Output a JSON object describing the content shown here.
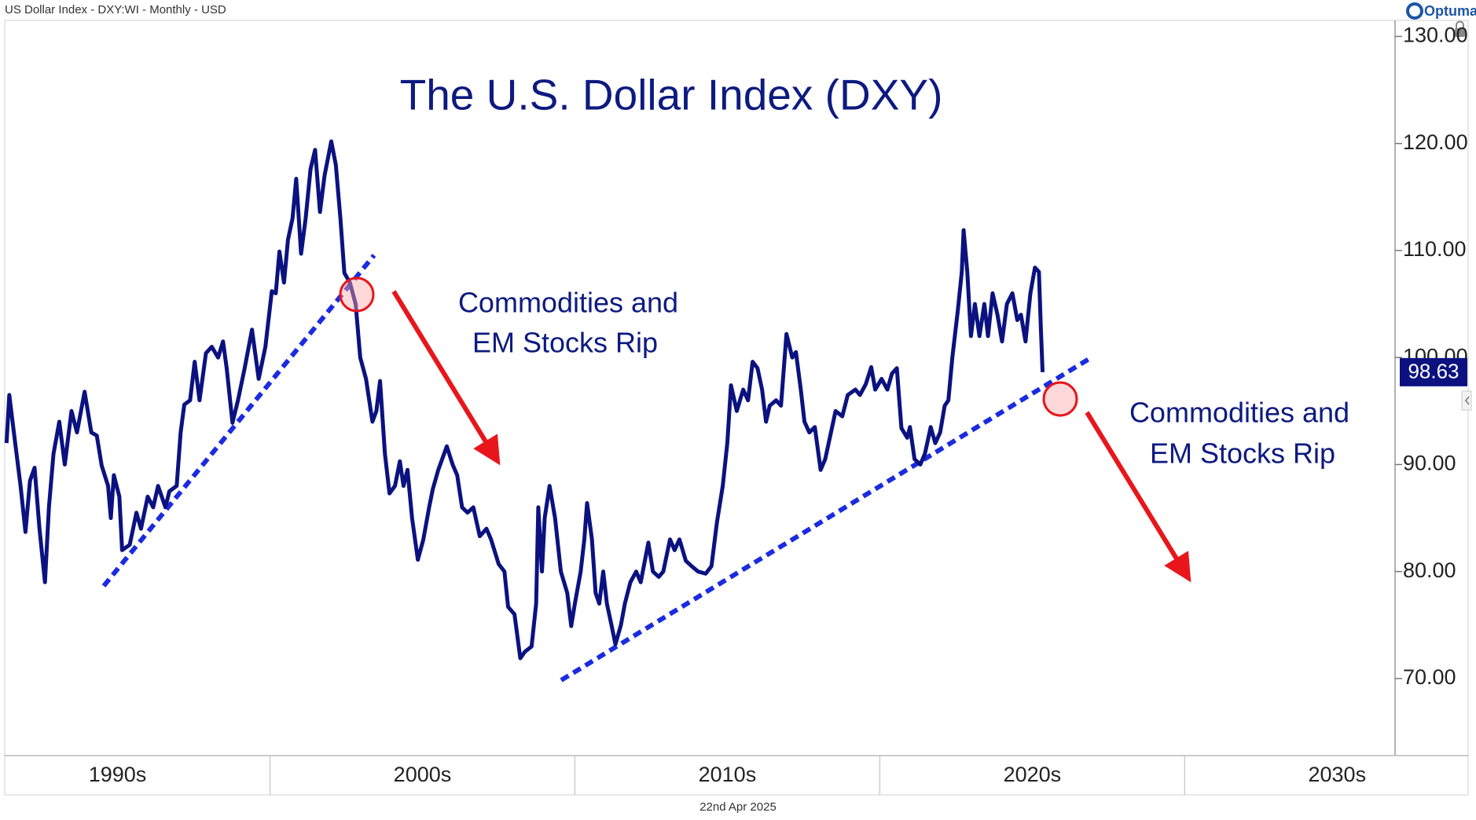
{
  "header": "US Dollar Index - DXY:WI - Monthly - USD",
  "brand": "Optuma",
  "footer": "22nd Apr 2025",
  "chart_data": {
    "type": "line",
    "title": "The U.S. Dollar Index (DXY)",
    "annotations": [
      [
        "Commodities and",
        "EM Stocks Rip"
      ],
      [
        "Commodities and",
        "EM Stocks Rip"
      ]
    ],
    "color": "#0b1280",
    "x": [
      1991.36,
      1991.45,
      1991.6,
      1991.82,
      1991.98,
      1992.13,
      1992.28,
      1992.44,
      1992.62,
      1992.75,
      1992.9,
      1993.09,
      1993.27,
      1993.49,
      1993.67,
      1993.92,
      1994.14,
      1994.32,
      1994.48,
      1994.69,
      1994.78,
      1994.88,
      1995.06,
      1995.15,
      1995.4,
      1995.62,
      1995.77,
      1995.99,
      1996.17,
      1996.33,
      1996.57,
      1996.7,
      1996.94,
      1997.07,
      1997.19,
      1997.38,
      1997.53,
      1997.69,
      1997.9,
      1998.09,
      1998.3,
      1998.46,
      1998.58,
      1998.77,
      1998.95,
      1999.17,
      1999.41,
      1999.63,
      1999.85,
      2000.06,
      2000.19,
      2000.31,
      2000.46,
      2000.59,
      2000.74,
      2000.86,
      2001.02,
      2001.17,
      2001.33,
      2001.48,
      2001.64,
      2001.79,
      2002.01,
      2002.16,
      2002.31,
      2002.44,
      2002.62,
      2002.81,
      2002.96,
      2003.15,
      2003.36,
      2003.49,
      2003.61,
      2003.77,
      2003.92,
      2004.1,
      2004.26,
      2004.38,
      2004.51,
      2004.66,
      2004.85,
      2005.03,
      2005.22,
      2005.34,
      2005.52,
      2005.8,
      2005.99,
      2006.14,
      2006.3,
      2006.48,
      2006.67,
      2006.88,
      2007.1,
      2007.25,
      2007.5,
      2007.69,
      2007.81,
      2008.02,
      2008.21,
      2008.36,
      2008.58,
      2008.73,
      2008.8,
      2008.92,
      2009.01,
      2009.17,
      2009.35,
      2009.54,
      2009.75,
      2009.88,
      2010.0,
      2010.19,
      2010.31,
      2010.4,
      2010.56,
      2010.68,
      2010.8,
      2010.93,
      2011.05,
      2011.2,
      2011.33,
      2011.51,
      2011.64,
      2011.82,
      2012.01,
      2012.16,
      2012.41,
      2012.56,
      2012.75,
      2012.9,
      2013.12,
      2013.27,
      2013.43,
      2013.64,
      2013.83,
      2014.04,
      2014.29,
      2014.48,
      2014.66,
      2014.85,
      2015.0,
      2015.12,
      2015.31,
      2015.52,
      2015.68,
      2015.83,
      2015.99,
      2016.14,
      2016.27,
      2016.39,
      2016.6,
      2016.76,
      2016.94,
      2017.13,
      2017.25,
      2017.41,
      2017.53,
      2017.69,
      2017.87,
      2018.06,
      2018.21,
      2018.4,
      2018.55,
      2018.77,
      2018.95,
      2019.2,
      2019.35,
      2019.54,
      2019.72,
      2019.85,
      2020.06,
      2020.25,
      2020.4,
      2020.56,
      2020.71,
      2020.9,
      2020.99,
      2021.14,
      2021.33,
      2021.48,
      2021.67,
      2021.82,
      2021.98,
      2022.13,
      2022.25,
      2022.38,
      2022.56,
      2022.69,
      2022.75,
      2022.87,
      2022.99,
      2023.12,
      2023.27,
      2023.43,
      2023.55,
      2023.7,
      2023.86,
      2024.01,
      2024.17,
      2024.35,
      2024.51,
      2024.63,
      2024.78,
      2024.94,
      2025.09,
      2025.22,
      2025.28,
      2025.34
    ],
    "values": [
      92,
      96.5,
      93,
      88,
      83.7,
      88.5,
      89.7,
      84,
      79,
      86,
      91,
      94,
      90,
      95,
      93,
      96.8,
      93,
      92.7,
      89.9,
      88,
      85,
      89,
      87,
      82,
      82.5,
      85.5,
      84,
      87,
      86,
      88,
      86,
      87.5,
      88,
      93,
      95.6,
      96,
      99.6,
      96,
      100.4,
      101,
      100,
      101.5,
      99,
      93.9,
      96,
      99,
      102.6,
      98,
      101,
      106.2,
      106,
      109.9,
      107,
      111,
      113,
      116.7,
      109.7,
      113,
      117.6,
      119.4,
      113.6,
      117,
      120.2,
      118,
      113,
      107.9,
      107,
      105,
      100,
      98,
      94,
      95,
      97.8,
      91,
      87.3,
      88,
      90.3,
      88,
      89.5,
      85,
      81.1,
      83,
      86,
      87.7,
      89.5,
      91.7,
      90,
      89,
      86,
      85.5,
      86,
      83.3,
      84,
      83,
      80.7,
      80,
      76.7,
      76,
      71.9,
      72.5,
      73,
      77,
      86,
      80,
      85,
      88,
      85,
      80,
      78,
      74.9,
      77,
      80,
      83,
      86.4,
      83,
      78,
      77,
      80,
      77,
      75,
      73.2,
      75,
      77,
      79,
      80,
      79,
      82.7,
      80,
      79.5,
      80,
      83,
      82,
      83,
      81,
      80.5,
      80,
      79.8,
      80.5,
      84.6,
      88,
      92,
      97.4,
      95,
      97,
      96,
      99.6,
      99,
      97,
      94,
      95.5,
      96,
      95.5,
      102.2,
      100,
      100.5,
      97,
      94,
      93,
      93.5,
      89.5,
      90.5,
      93,
      95,
      94.5,
      96.5,
      97,
      96.5,
      97.5,
      99.1,
      97,
      98,
      97,
      98.5,
      99,
      93.4,
      92.5,
      93.5,
      90.5,
      90,
      91,
      93.5,
      92,
      93,
      95.5,
      96,
      100,
      104.4,
      108,
      111.9,
      108,
      102,
      105,
      102,
      105,
      102,
      106,
      104,
      101.5,
      105,
      106,
      103.5,
      104,
      101.5,
      106,
      108.4,
      108,
      103,
      98.63
    ],
    "xlim": [
      1991.3,
      2036.9
    ],
    "xticks": [
      {
        "value": 1995,
        "label": "1990s"
      },
      {
        "value": 2005,
        "label": "2000s"
      },
      {
        "value": 2015,
        "label": "2010s"
      },
      {
        "value": 2025,
        "label": "2020s"
      },
      {
        "value": 2035,
        "label": "2030s"
      }
    ],
    "ylim": [
      62.8,
      131.5
    ],
    "yticks": [
      {
        "value": 70,
        "label": "70.00"
      },
      {
        "value": 80,
        "label": "80.00"
      },
      {
        "value": 90,
        "label": "90.00"
      },
      {
        "value": 100,
        "label": "100.00"
      },
      {
        "value": 110,
        "label": "110.00"
      },
      {
        "value": 120,
        "label": "120.00"
      },
      {
        "value": 130,
        "label": "130.00"
      }
    ],
    "grid": false
  }
}
